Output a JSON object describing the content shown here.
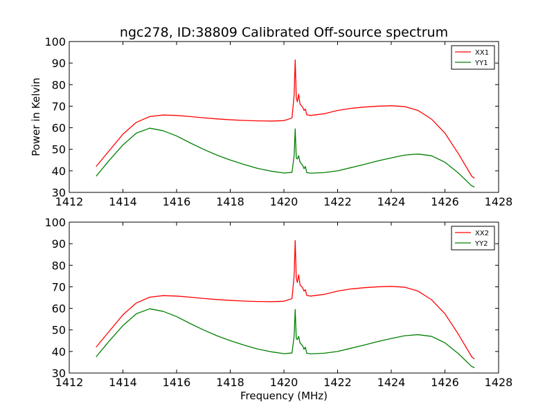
{
  "chart_data": {
    "title": "ngc278, ID:38809 Calibrated Off-source spectrum",
    "xlabel": "Frequency (MHz)",
    "ylabel": "Power in Kelvin",
    "panels": [
      {
        "type": "line",
        "xlim": [
          1412,
          1428
        ],
        "ylim": [
          30,
          100
        ],
        "xticks": [
          "1412",
          "1414",
          "1416",
          "1418",
          "1420",
          "1422",
          "1424",
          "1426",
          "1428"
        ],
        "yticks": [
          "30",
          "40",
          "50",
          "60",
          "70",
          "80",
          "90",
          "100"
        ],
        "legend_position": "top-right",
        "grid": false,
        "series": [
          {
            "name": "XX1",
            "color": "#ff0000",
            "points": [
              [
                1413.0,
                42.0
              ],
              [
                1413.5,
                49.5
              ],
              [
                1414.0,
                57.0
              ],
              [
                1414.5,
                62.5
              ],
              [
                1415.0,
                65.2
              ],
              [
                1415.5,
                65.9
              ],
              [
                1416.0,
                65.7
              ],
              [
                1416.5,
                65.2
              ],
              [
                1417.0,
                64.6
              ],
              [
                1417.5,
                64.1
              ],
              [
                1418.0,
                63.7
              ],
              [
                1418.5,
                63.4
              ],
              [
                1419.0,
                63.2
              ],
              [
                1419.5,
                63.1
              ],
              [
                1420.0,
                63.3
              ],
              [
                1420.3,
                64.5
              ],
              [
                1420.38,
                75.0
              ],
              [
                1420.42,
                91.5
              ],
              [
                1420.46,
                74.0
              ],
              [
                1420.5,
                72.0
              ],
              [
                1420.55,
                75.5
              ],
              [
                1420.6,
                71.0
              ],
              [
                1420.7,
                69.5
              ],
              [
                1420.75,
                68.0
              ],
              [
                1420.8,
                68.7
              ],
              [
                1420.85,
                66.0
              ],
              [
                1421.0,
                65.7
              ],
              [
                1421.5,
                66.5
              ],
              [
                1422.0,
                68.0
              ],
              [
                1422.5,
                69.0
              ],
              [
                1423.0,
                69.6
              ],
              [
                1423.5,
                70.0
              ],
              [
                1424.0,
                70.2
              ],
              [
                1424.5,
                69.8
              ],
              [
                1425.0,
                68.0
              ],
              [
                1425.5,
                64.0
              ],
              [
                1426.0,
                57.5
              ],
              [
                1426.5,
                48.0
              ],
              [
                1427.0,
                37.5
              ],
              [
                1427.1,
                36.5
              ]
            ]
          },
          {
            "name": "YY1",
            "color": "#007f00",
            "points": [
              [
                1413.0,
                37.5
              ],
              [
                1413.5,
                45.0
              ],
              [
                1414.0,
                52.0
              ],
              [
                1414.5,
                57.5
              ],
              [
                1415.0,
                59.8
              ],
              [
                1415.5,
                58.6
              ],
              [
                1416.0,
                56.2
              ],
              [
                1416.5,
                53.0
              ],
              [
                1417.0,
                50.0
              ],
              [
                1417.5,
                47.3
              ],
              [
                1418.0,
                45.0
              ],
              [
                1418.5,
                43.0
              ],
              [
                1419.0,
                41.2
              ],
              [
                1419.5,
                39.9
              ],
              [
                1420.0,
                39.0
              ],
              [
                1420.3,
                39.3
              ],
              [
                1420.38,
                47.0
              ],
              [
                1420.42,
                59.5
              ],
              [
                1420.46,
                46.0
              ],
              [
                1420.5,
                45.5
              ],
              [
                1420.55,
                47.0
              ],
              [
                1420.6,
                44.0
              ],
              [
                1420.7,
                42.5
              ],
              [
                1420.75,
                41.0
              ],
              [
                1420.8,
                42.0
              ],
              [
                1420.85,
                39.2
              ],
              [
                1421.0,
                38.9
              ],
              [
                1421.5,
                39.2
              ],
              [
                1422.0,
                40.0
              ],
              [
                1422.5,
                41.5
              ],
              [
                1423.0,
                43.0
              ],
              [
                1423.5,
                44.6
              ],
              [
                1424.0,
                46.0
              ],
              [
                1424.5,
                47.3
              ],
              [
                1425.0,
                47.8
              ],
              [
                1425.5,
                47.0
              ],
              [
                1426.0,
                44.0
              ],
              [
                1426.5,
                39.0
              ],
              [
                1427.0,
                33.0
              ],
              [
                1427.1,
                32.5
              ]
            ]
          }
        ]
      },
      {
        "type": "line",
        "xlim": [
          1412,
          1428
        ],
        "ylim": [
          30,
          100
        ],
        "xticks": [
          "1412",
          "1414",
          "1416",
          "1418",
          "1420",
          "1422",
          "1424",
          "1426",
          "1428"
        ],
        "yticks": [
          "30",
          "40",
          "50",
          "60",
          "70",
          "80",
          "90",
          "100"
        ],
        "legend_position": "top-right",
        "grid": false,
        "series": [
          {
            "name": "XX2",
            "color": "#ff0000",
            "points": [
              [
                1413.0,
                42.0
              ],
              [
                1413.5,
                49.5
              ],
              [
                1414.0,
                57.0
              ],
              [
                1414.5,
                62.5
              ],
              [
                1415.0,
                65.2
              ],
              [
                1415.5,
                65.9
              ],
              [
                1416.0,
                65.7
              ],
              [
                1416.5,
                65.2
              ],
              [
                1417.0,
                64.6
              ],
              [
                1417.5,
                64.1
              ],
              [
                1418.0,
                63.7
              ],
              [
                1418.5,
                63.4
              ],
              [
                1419.0,
                63.2
              ],
              [
                1419.5,
                63.1
              ],
              [
                1420.0,
                63.3
              ],
              [
                1420.3,
                64.5
              ],
              [
                1420.38,
                75.0
              ],
              [
                1420.42,
                91.5
              ],
              [
                1420.46,
                74.0
              ],
              [
                1420.5,
                72.0
              ],
              [
                1420.55,
                75.5
              ],
              [
                1420.6,
                71.0
              ],
              [
                1420.7,
                69.5
              ],
              [
                1420.75,
                68.0
              ],
              [
                1420.8,
                68.7
              ],
              [
                1420.85,
                66.0
              ],
              [
                1421.0,
                65.7
              ],
              [
                1421.5,
                66.5
              ],
              [
                1422.0,
                68.0
              ],
              [
                1422.5,
                69.0
              ],
              [
                1423.0,
                69.6
              ],
              [
                1423.5,
                70.0
              ],
              [
                1424.0,
                70.2
              ],
              [
                1424.5,
                69.8
              ],
              [
                1425.0,
                68.0
              ],
              [
                1425.5,
                64.0
              ],
              [
                1426.0,
                57.5
              ],
              [
                1426.5,
                48.0
              ],
              [
                1427.0,
                37.5
              ],
              [
                1427.1,
                36.5
              ]
            ]
          },
          {
            "name": "YY2",
            "color": "#007f00",
            "points": [
              [
                1413.0,
                37.5
              ],
              [
                1413.5,
                45.0
              ],
              [
                1414.0,
                52.0
              ],
              [
                1414.5,
                57.5
              ],
              [
                1415.0,
                59.8
              ],
              [
                1415.5,
                58.6
              ],
              [
                1416.0,
                56.2
              ],
              [
                1416.5,
                53.0
              ],
              [
                1417.0,
                50.0
              ],
              [
                1417.5,
                47.3
              ],
              [
                1418.0,
                45.0
              ],
              [
                1418.5,
                43.0
              ],
              [
                1419.0,
                41.2
              ],
              [
                1419.5,
                39.9
              ],
              [
                1420.0,
                39.0
              ],
              [
                1420.3,
                39.3
              ],
              [
                1420.38,
                47.0
              ],
              [
                1420.42,
                59.5
              ],
              [
                1420.46,
                46.0
              ],
              [
                1420.5,
                45.5
              ],
              [
                1420.55,
                47.0
              ],
              [
                1420.6,
                44.0
              ],
              [
                1420.7,
                42.5
              ],
              [
                1420.75,
                41.0
              ],
              [
                1420.8,
                42.0
              ],
              [
                1420.85,
                39.2
              ],
              [
                1421.0,
                38.9
              ],
              [
                1421.5,
                39.2
              ],
              [
                1422.0,
                40.0
              ],
              [
                1422.5,
                41.5
              ],
              [
                1423.0,
                43.0
              ],
              [
                1423.5,
                44.6
              ],
              [
                1424.0,
                46.0
              ],
              [
                1424.5,
                47.3
              ],
              [
                1425.0,
                47.8
              ],
              [
                1425.5,
                47.0
              ],
              [
                1426.0,
                44.0
              ],
              [
                1426.5,
                39.0
              ],
              [
                1427.0,
                33.0
              ],
              [
                1427.1,
                32.5
              ]
            ]
          }
        ]
      }
    ]
  }
}
